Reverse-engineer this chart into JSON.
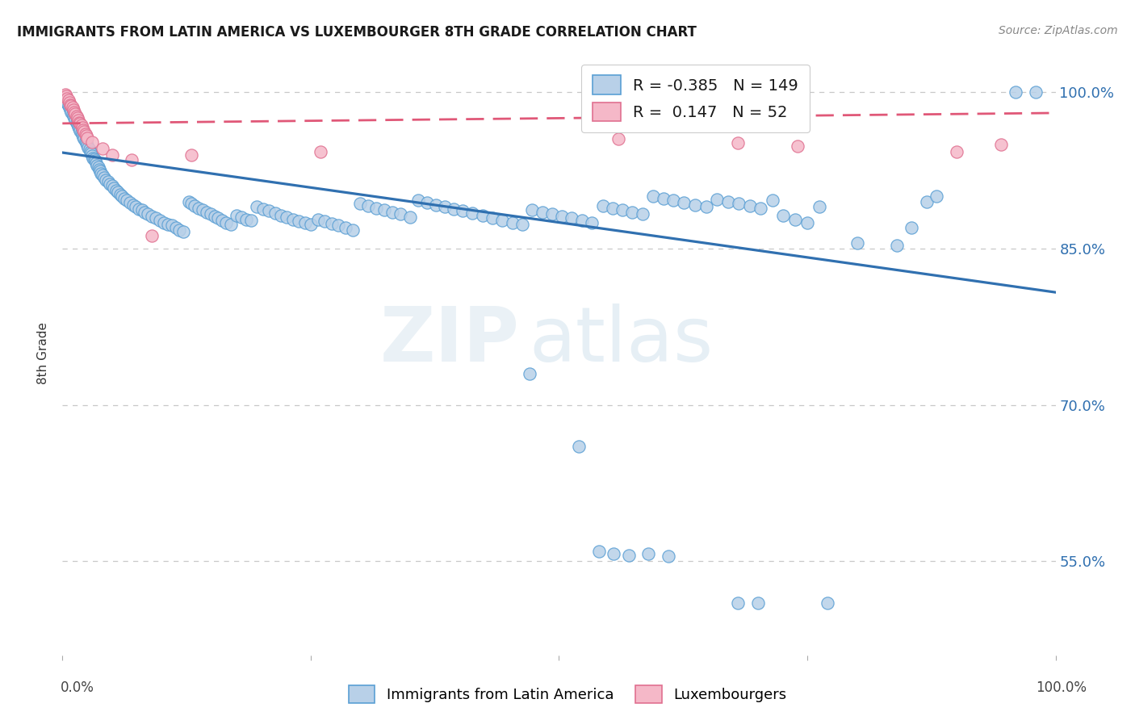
{
  "title": "IMMIGRANTS FROM LATIN AMERICA VS LUXEMBOURGER 8TH GRADE CORRELATION CHART",
  "source": "Source: ZipAtlas.com",
  "ylabel": "8th Grade",
  "y_ticks": [
    0.55,
    0.7,
    0.85,
    1.0
  ],
  "y_tick_labels": [
    "55.0%",
    "70.0%",
    "85.0%",
    "100.0%"
  ],
  "xlim": [
    0.0,
    1.0
  ],
  "ylim": [
    0.46,
    1.04
  ],
  "blue_R": -0.385,
  "blue_N": 149,
  "pink_R": 0.147,
  "pink_N": 52,
  "blue_color": "#b8d0e8",
  "blue_edge_color": "#5a9fd4",
  "blue_line_color": "#3070b0",
  "pink_color": "#f5b8c8",
  "pink_edge_color": "#e07090",
  "pink_line_color": "#e05878",
  "blue_trend": [
    0.0,
    0.942,
    1.0,
    0.808
  ],
  "pink_trend": [
    0.0,
    0.97,
    1.0,
    0.98
  ],
  "blue_points": [
    [
      0.003,
      0.993
    ],
    [
      0.004,
      0.991
    ],
    [
      0.005,
      0.989
    ],
    [
      0.006,
      0.987
    ],
    [
      0.007,
      0.985
    ],
    [
      0.008,
      0.983
    ],
    [
      0.009,
      0.981
    ],
    [
      0.01,
      0.979
    ],
    [
      0.011,
      0.977
    ],
    [
      0.012,
      0.975
    ],
    [
      0.013,
      0.973
    ],
    [
      0.014,
      0.971
    ],
    [
      0.015,
      0.969
    ],
    [
      0.016,
      0.967
    ],
    [
      0.017,
      0.965
    ],
    [
      0.018,
      0.963
    ],
    [
      0.019,
      0.961
    ],
    [
      0.02,
      0.959
    ],
    [
      0.021,
      0.957
    ],
    [
      0.022,
      0.955
    ],
    [
      0.023,
      0.953
    ],
    [
      0.024,
      0.951
    ],
    [
      0.025,
      0.949
    ],
    [
      0.026,
      0.947
    ],
    [
      0.027,
      0.945
    ],
    [
      0.028,
      0.943
    ],
    [
      0.029,
      0.941
    ],
    [
      0.03,
      0.939
    ],
    [
      0.031,
      0.937
    ],
    [
      0.032,
      0.936
    ],
    [
      0.033,
      0.934
    ],
    [
      0.034,
      0.932
    ],
    [
      0.035,
      0.93
    ],
    [
      0.036,
      0.928
    ],
    [
      0.037,
      0.926
    ],
    [
      0.038,
      0.924
    ],
    [
      0.039,
      0.922
    ],
    [
      0.04,
      0.92
    ],
    [
      0.042,
      0.918
    ],
    [
      0.044,
      0.916
    ],
    [
      0.046,
      0.914
    ],
    [
      0.048,
      0.912
    ],
    [
      0.05,
      0.91
    ],
    [
      0.052,
      0.908
    ],
    [
      0.054,
      0.906
    ],
    [
      0.056,
      0.904
    ],
    [
      0.058,
      0.902
    ],
    [
      0.06,
      0.9
    ],
    [
      0.062,
      0.898
    ],
    [
      0.065,
      0.896
    ],
    [
      0.068,
      0.894
    ],
    [
      0.071,
      0.892
    ],
    [
      0.074,
      0.89
    ],
    [
      0.077,
      0.888
    ],
    [
      0.08,
      0.887
    ],
    [
      0.083,
      0.885
    ],
    [
      0.086,
      0.883
    ],
    [
      0.09,
      0.881
    ],
    [
      0.094,
      0.879
    ],
    [
      0.098,
      0.877
    ],
    [
      0.102,
      0.875
    ],
    [
      0.106,
      0.873
    ],
    [
      0.11,
      0.872
    ],
    [
      0.114,
      0.87
    ],
    [
      0.118,
      0.868
    ],
    [
      0.122,
      0.866
    ],
    [
      0.127,
      0.895
    ],
    [
      0.13,
      0.893
    ],
    [
      0.133,
      0.891
    ],
    [
      0.137,
      0.889
    ],
    [
      0.141,
      0.887
    ],
    [
      0.145,
      0.885
    ],
    [
      0.149,
      0.883
    ],
    [
      0.153,
      0.881
    ],
    [
      0.157,
      0.879
    ],
    [
      0.161,
      0.877
    ],
    [
      0.165,
      0.875
    ],
    [
      0.17,
      0.873
    ],
    [
      0.175,
      0.882
    ],
    [
      0.18,
      0.88
    ],
    [
      0.185,
      0.878
    ],
    [
      0.19,
      0.877
    ],
    [
      0.196,
      0.89
    ],
    [
      0.202,
      0.888
    ],
    [
      0.208,
      0.886
    ],
    [
      0.214,
      0.884
    ],
    [
      0.22,
      0.882
    ],
    [
      0.226,
      0.88
    ],
    [
      0.232,
      0.878
    ],
    [
      0.238,
      0.876
    ],
    [
      0.244,
      0.875
    ],
    [
      0.25,
      0.873
    ],
    [
      0.257,
      0.878
    ],
    [
      0.264,
      0.876
    ],
    [
      0.271,
      0.874
    ],
    [
      0.278,
      0.872
    ],
    [
      0.285,
      0.87
    ],
    [
      0.292,
      0.868
    ],
    [
      0.3,
      0.893
    ],
    [
      0.308,
      0.891
    ],
    [
      0.316,
      0.889
    ],
    [
      0.324,
      0.887
    ],
    [
      0.332,
      0.885
    ],
    [
      0.34,
      0.883
    ],
    [
      0.35,
      0.88
    ],
    [
      0.358,
      0.896
    ],
    [
      0.367,
      0.894
    ],
    [
      0.376,
      0.892
    ],
    [
      0.385,
      0.89
    ],
    [
      0.394,
      0.888
    ],
    [
      0.403,
      0.886
    ],
    [
      0.413,
      0.884
    ],
    [
      0.423,
      0.882
    ],
    [
      0.433,
      0.879
    ],
    [
      0.443,
      0.877
    ],
    [
      0.453,
      0.875
    ],
    [
      0.463,
      0.873
    ],
    [
      0.473,
      0.887
    ],
    [
      0.483,
      0.885
    ],
    [
      0.493,
      0.883
    ],
    [
      0.503,
      0.881
    ],
    [
      0.513,
      0.879
    ],
    [
      0.523,
      0.877
    ],
    [
      0.533,
      0.875
    ],
    [
      0.544,
      0.891
    ],
    [
      0.554,
      0.889
    ],
    [
      0.564,
      0.887
    ],
    [
      0.574,
      0.885
    ],
    [
      0.584,
      0.883
    ],
    [
      0.595,
      0.9
    ],
    [
      0.605,
      0.898
    ],
    [
      0.615,
      0.896
    ],
    [
      0.626,
      0.894
    ],
    [
      0.637,
      0.892
    ],
    [
      0.648,
      0.89
    ],
    [
      0.659,
      0.897
    ],
    [
      0.67,
      0.895
    ],
    [
      0.681,
      0.893
    ],
    [
      0.692,
      0.891
    ],
    [
      0.703,
      0.889
    ],
    [
      0.715,
      0.896
    ],
    [
      0.726,
      0.882
    ],
    [
      0.738,
      0.878
    ],
    [
      0.75,
      0.875
    ],
    [
      0.762,
      0.89
    ],
    [
      0.8,
      0.855
    ],
    [
      0.84,
      0.853
    ],
    [
      0.855,
      0.87
    ],
    [
      0.87,
      0.895
    ],
    [
      0.88,
      0.9
    ],
    [
      0.96,
      1.0
    ],
    [
      0.98,
      1.0
    ],
    [
      0.47,
      0.73
    ],
    [
      0.52,
      0.66
    ],
    [
      0.54,
      0.56
    ],
    [
      0.555,
      0.557
    ],
    [
      0.57,
      0.556
    ],
    [
      0.59,
      0.557
    ],
    [
      0.61,
      0.555
    ],
    [
      0.68,
      0.51
    ],
    [
      0.7,
      0.51
    ],
    [
      0.77,
      0.51
    ]
  ],
  "pink_points": [
    [
      0.003,
      0.998
    ],
    [
      0.004,
      0.996
    ],
    [
      0.005,
      0.994
    ],
    [
      0.006,
      0.992
    ],
    [
      0.007,
      0.99
    ],
    [
      0.008,
      0.988
    ],
    [
      0.009,
      0.987
    ],
    [
      0.01,
      0.985
    ],
    [
      0.011,
      0.983
    ],
    [
      0.012,
      0.981
    ],
    [
      0.013,
      0.979
    ],
    [
      0.014,
      0.977
    ],
    [
      0.015,
      0.975
    ],
    [
      0.016,
      0.973
    ],
    [
      0.017,
      0.971
    ],
    [
      0.018,
      0.97
    ],
    [
      0.019,
      0.968
    ],
    [
      0.02,
      0.966
    ],
    [
      0.021,
      0.964
    ],
    [
      0.022,
      0.962
    ],
    [
      0.023,
      0.96
    ],
    [
      0.024,
      0.958
    ],
    [
      0.025,
      0.956
    ],
    [
      0.03,
      0.952
    ],
    [
      0.04,
      0.946
    ],
    [
      0.05,
      0.94
    ],
    [
      0.07,
      0.935
    ],
    [
      0.09,
      0.862
    ],
    [
      0.13,
      0.94
    ],
    [
      0.26,
      0.943
    ],
    [
      0.56,
      0.955
    ],
    [
      0.68,
      0.951
    ],
    [
      0.74,
      0.948
    ],
    [
      0.9,
      0.943
    ],
    [
      0.945,
      0.95
    ]
  ]
}
